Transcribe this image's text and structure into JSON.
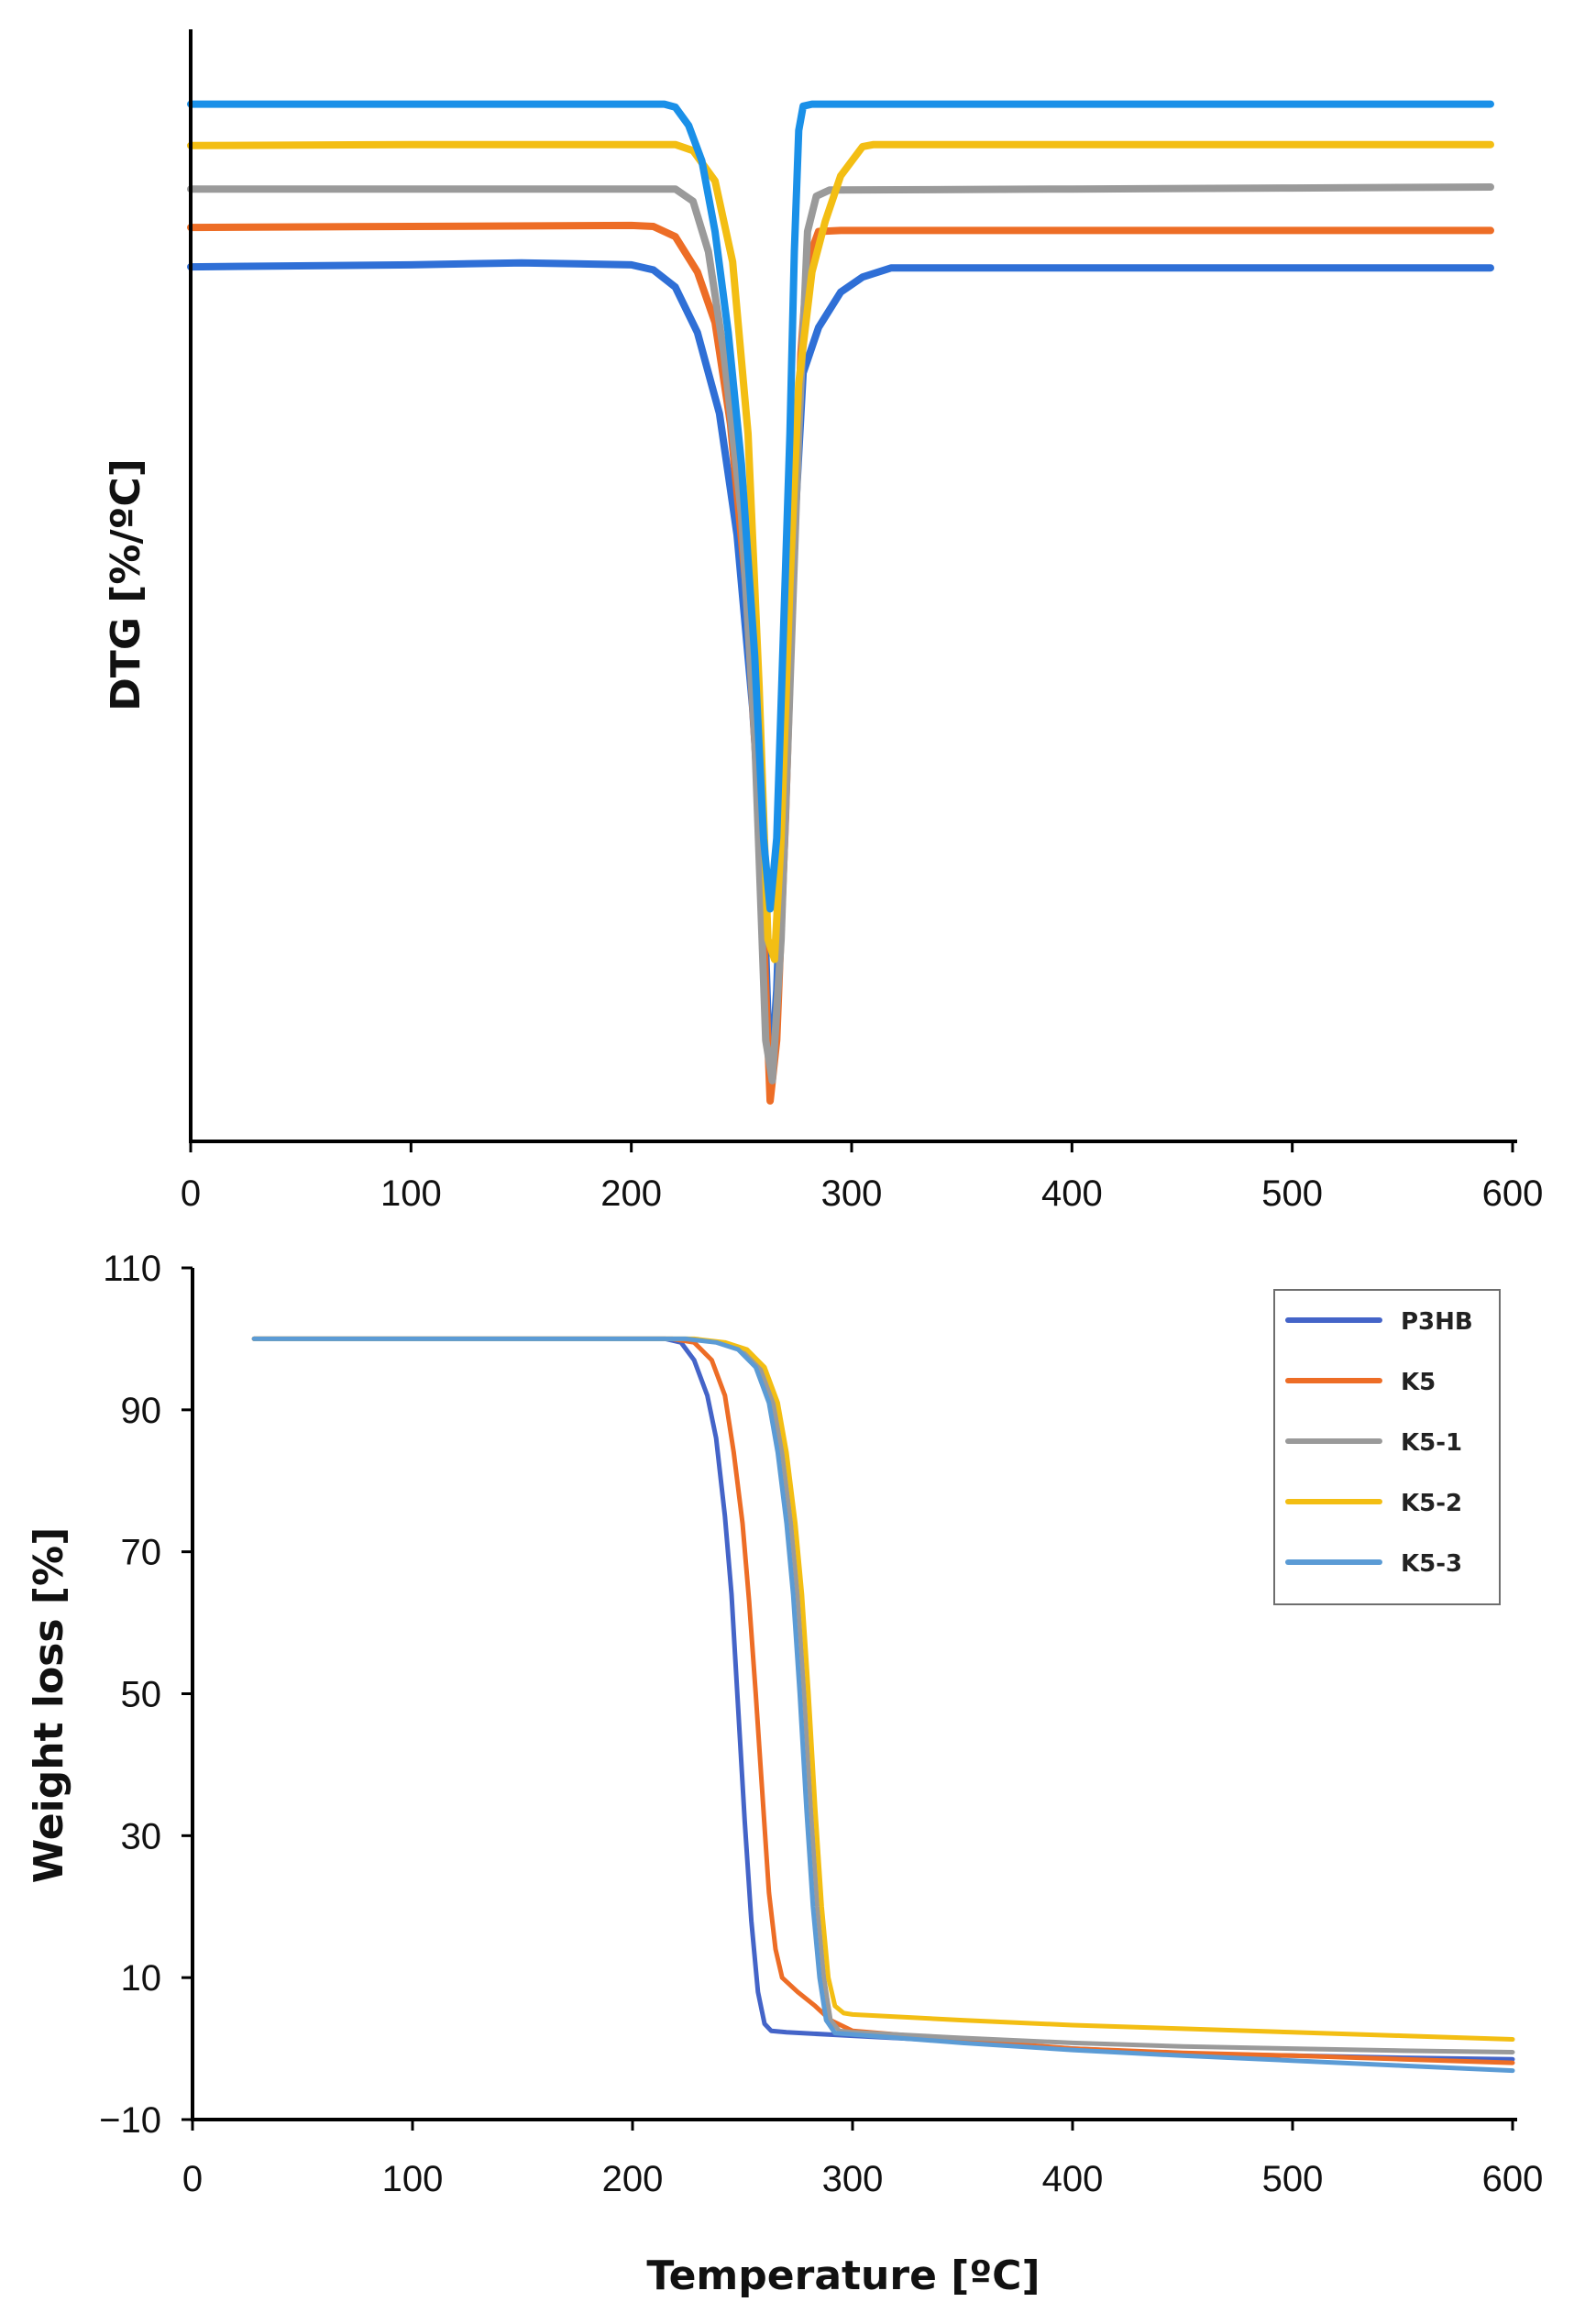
{
  "chart_data": [
    {
      "type": "line",
      "title": "",
      "xlabel": "",
      "ylabel": "DTG [%/ºC]",
      "xlim": [
        0,
        600
      ],
      "ylim": [
        -100,
        10
      ],
      "x_ticks": [
        0,
        100,
        200,
        300,
        400,
        500,
        600
      ],
      "y_ticks": [],
      "show_y_tick_labels": false,
      "grid": false,
      "series": [
        {
          "color": "#2f6fd6",
          "values": [
            [
              0,
              -13.5
            ],
            [
              100,
              -13.3
            ],
            [
              150,
              -13.1
            ],
            [
              200,
              -13.3
            ],
            [
              210,
              -13.8
            ],
            [
              220,
              -15.5
            ],
            [
              230,
              -20
            ],
            [
              240,
              -28
            ],
            [
              248,
              -40
            ],
            [
              255,
              -57
            ],
            [
              260,
              -74
            ],
            [
              263,
              -95
            ],
            [
              266,
              -85
            ],
            [
              270,
              -60
            ],
            [
              274,
              -40
            ],
            [
              278,
              -24
            ],
            [
              285,
              -19.5
            ],
            [
              295,
              -16
            ],
            [
              305,
              -14.5
            ],
            [
              318,
              -13.6
            ],
            [
              400,
              -13.6
            ],
            [
              500,
              -13.6
            ],
            [
              590,
              -13.6
            ]
          ]
        },
        {
          "color": "#ed6d26",
          "values": [
            [
              0,
              -9.6
            ],
            [
              100,
              -9.5
            ],
            [
              200,
              -9.4
            ],
            [
              210,
              -9.5
            ],
            [
              220,
              -10.5
            ],
            [
              230,
              -14
            ],
            [
              238,
              -19
            ],
            [
              245,
              -29
            ],
            [
              252,
              -45
            ],
            [
              258,
              -68
            ],
            [
              263,
              -96
            ],
            [
              266,
              -90
            ],
            [
              270,
              -68
            ],
            [
              274,
              -40
            ],
            [
              277,
              -22
            ],
            [
              280,
              -13
            ],
            [
              285,
              -10
            ],
            [
              295,
              -9.9
            ],
            [
              400,
              -9.9
            ],
            [
              500,
              -9.9
            ],
            [
              590,
              -9.9
            ]
          ]
        },
        {
          "color": "#9a9a9a",
          "values": [
            [
              0,
              -5.8
            ],
            [
              100,
              -5.8
            ],
            [
              200,
              -5.8
            ],
            [
              220,
              -5.8
            ],
            [
              228,
              -7
            ],
            [
              235,
              -12
            ],
            [
              242,
              -22
            ],
            [
              250,
              -38
            ],
            [
              256,
              -60
            ],
            [
              261,
              -90
            ],
            [
              264,
              -94
            ],
            [
              268,
              -80
            ],
            [
              272,
              -55
            ],
            [
              276,
              -30
            ],
            [
              280,
              -10
            ],
            [
              284,
              -6.5
            ],
            [
              290,
              -5.9
            ],
            [
              400,
              -5.8
            ],
            [
              500,
              -5.7
            ],
            [
              590,
              -5.6
            ]
          ]
        },
        {
          "color": "#f3be13",
          "values": [
            [
              0,
              -1.5
            ],
            [
              100,
              -1.4
            ],
            [
              200,
              -1.4
            ],
            [
              220,
              -1.4
            ],
            [
              228,
              -2
            ],
            [
              238,
              -5
            ],
            [
              246,
              -13
            ],
            [
              253,
              -30
            ],
            [
              258,
              -55
            ],
            [
              262,
              -80
            ],
            [
              265,
              -82
            ],
            [
              268,
              -70
            ],
            [
              272,
              -45
            ],
            [
              276,
              -25
            ],
            [
              282,
              -14
            ],
            [
              288,
              -9
            ],
            [
              295,
              -4.5
            ],
            [
              305,
              -1.6
            ],
            [
              310,
              -1.4
            ],
            [
              400,
              -1.4
            ],
            [
              500,
              -1.4
            ],
            [
              590,
              -1.4
            ]
          ]
        },
        {
          "color": "#1a90e8",
          "values": [
            [
              0,
              2.6
            ],
            [
              100,
              2.6
            ],
            [
              200,
              2.6
            ],
            [
              215,
              2.6
            ],
            [
              220,
              2.3
            ],
            [
              226,
              0.5
            ],
            [
              232,
              -3
            ],
            [
              238,
              -10
            ],
            [
              244,
              -20
            ],
            [
              250,
              -33
            ],
            [
              256,
              -52
            ],
            [
              260,
              -70
            ],
            [
              263,
              -77
            ],
            [
              266,
              -70
            ],
            [
              269,
              -50
            ],
            [
              272,
              -30
            ],
            [
              274,
              -12
            ],
            [
              276,
              0
            ],
            [
              278,
              2.4
            ],
            [
              282,
              2.6
            ],
            [
              400,
              2.6
            ],
            [
              500,
              2.6
            ],
            [
              590,
              2.6
            ]
          ]
        }
      ]
    },
    {
      "type": "line",
      "title": "",
      "xlabel": "Temperature [ºC]",
      "ylabel": "Weight loss [%]",
      "xlim": [
        0,
        600
      ],
      "ylim": [
        -10,
        110
      ],
      "x_ticks": [
        0,
        100,
        200,
        300,
        400,
        500,
        600
      ],
      "y_ticks": [
        -10,
        10,
        30,
        50,
        70,
        90,
        110
      ],
      "grid": false,
      "legend_position": "top-right",
      "series": [
        {
          "name": "P3HB",
          "color": "#4464c8",
          "values": [
            [
              28,
              100
            ],
            [
              150,
              100
            ],
            [
              215,
              100
            ],
            [
              222,
              99.5
            ],
            [
              228,
              97
            ],
            [
              234,
              92
            ],
            [
              238,
              86
            ],
            [
              242,
              75
            ],
            [
              245,
              64
            ],
            [
              248,
              48
            ],
            [
              251,
              32
            ],
            [
              254,
              18
            ],
            [
              257,
              8
            ],
            [
              260,
              3.5
            ],
            [
              263,
              2.5
            ],
            [
              270,
              2.3
            ],
            [
              300,
              1.8
            ],
            [
              350,
              1
            ],
            [
              400,
              0
            ],
            [
              450,
              -0.7
            ],
            [
              500,
              -1
            ],
            [
              550,
              -1.3
            ],
            [
              600,
              -1.5
            ]
          ]
        },
        {
          "name": "K5",
          "color": "#ed6d26",
          "values": [
            [
              28,
              100
            ],
            [
              150,
              100
            ],
            [
              218,
              100
            ],
            [
              228,
              99.5
            ],
            [
              236,
              97
            ],
            [
              242,
              92
            ],
            [
              246,
              84
            ],
            [
              250,
              74
            ],
            [
              253,
              63
            ],
            [
              256,
              50
            ],
            [
              259,
              36
            ],
            [
              262,
              22
            ],
            [
              265,
              14
            ],
            [
              268,
              10
            ],
            [
              275,
              8
            ],
            [
              283,
              6
            ],
            [
              290,
              4
            ],
            [
              300,
              2.5
            ],
            [
              350,
              1.2
            ],
            [
              400,
              0
            ],
            [
              450,
              -0.6
            ],
            [
              500,
              -1
            ],
            [
              550,
              -1.5
            ],
            [
              600,
              -2
            ]
          ]
        },
        {
          "name": "K5-1",
          "color": "#9a9a9a",
          "values": [
            [
              28,
              100
            ],
            [
              150,
              100
            ],
            [
              225,
              100
            ],
            [
              240,
              99.5
            ],
            [
              250,
              98.5
            ],
            [
              258,
              96
            ],
            [
              264,
              91
            ],
            [
              268,
              84
            ],
            [
              272,
              74
            ],
            [
              275,
              64
            ],
            [
              278,
              50
            ],
            [
              281,
              34
            ],
            [
              284,
              20
            ],
            [
              287,
              10
            ],
            [
              290,
              4
            ],
            [
              294,
              2.5
            ],
            [
              300,
              2.3
            ],
            [
              350,
              1.5
            ],
            [
              400,
              0.8
            ],
            [
              450,
              0.3
            ],
            [
              500,
              0
            ],
            [
              550,
              -0.3
            ],
            [
              600,
              -0.5
            ]
          ]
        },
        {
          "name": "K5-2",
          "color": "#f3be13",
          "values": [
            [
              28,
              100
            ],
            [
              150,
              100
            ],
            [
              228,
              100
            ],
            [
              242,
              99.5
            ],
            [
              252,
              98.5
            ],
            [
              260,
              96
            ],
            [
              266,
              91
            ],
            [
              270,
              84
            ],
            [
              274,
              74
            ],
            [
              277,
              64
            ],
            [
              280,
              50
            ],
            [
              283,
              34
            ],
            [
              286,
              20
            ],
            [
              289,
              10
            ],
            [
              292,
              6
            ],
            [
              296,
              5
            ],
            [
              300,
              4.8
            ],
            [
              350,
              4
            ],
            [
              400,
              3.3
            ],
            [
              450,
              2.8
            ],
            [
              500,
              2.3
            ],
            [
              550,
              1.8
            ],
            [
              600,
              1.3
            ]
          ]
        },
        {
          "name": "K5-3",
          "color": "#5b9bd5",
          "values": [
            [
              28,
              100
            ],
            [
              150,
              100
            ],
            [
              224,
              100
            ],
            [
              238,
              99.5
            ],
            [
              248,
              98.5
            ],
            [
              256,
              96
            ],
            [
              262,
              91
            ],
            [
              266,
              84
            ],
            [
              270,
              74
            ],
            [
              273,
              64
            ],
            [
              276,
              50
            ],
            [
              279,
              34
            ],
            [
              282,
              20
            ],
            [
              285,
              10
            ],
            [
              288,
              4
            ],
            [
              292,
              2.2
            ],
            [
              300,
              2
            ],
            [
              350,
              0.8
            ],
            [
              400,
              -0.2
            ],
            [
              450,
              -1
            ],
            [
              500,
              -1.7
            ],
            [
              550,
              -2.4
            ],
            [
              600,
              -3.1
            ]
          ]
        }
      ]
    }
  ]
}
